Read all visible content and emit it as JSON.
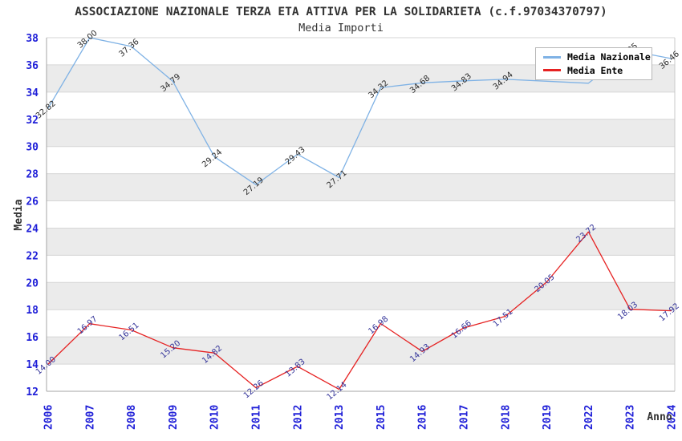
{
  "chart_data": {
    "type": "line",
    "title": "ASSOCIAZIONE NAZIONALE TERZA ETA ATTIVA PER LA SOLIDARIETA (c.f.97034370797)",
    "subtitle": "Media Importi",
    "xlabel": "Anno",
    "ylabel": "Media",
    "categories": [
      "2006",
      "2007",
      "2008",
      "2009",
      "2010",
      "2011",
      "2012",
      "2013",
      "2015",
      "2016",
      "2017",
      "2018",
      "2019",
      "2022",
      "2023",
      "2024"
    ],
    "series": [
      {
        "name": "Media Nazionale",
        "color": "#7fb2e5",
        "label_color": "#2b2b2b",
        "values": [
          32.82,
          38.0,
          37.36,
          34.79,
          29.24,
          27.19,
          29.43,
          27.71,
          34.32,
          34.68,
          34.83,
          34.94,
          34.8,
          34.65,
          37.05,
          36.46
        ],
        "point_labels": [
          "32.82",
          "38.00",
          "37.36",
          "34.79",
          "29.24",
          "27.19",
          "29.43",
          "27.71",
          "34.32",
          "34.68",
          "34.83",
          "34.94",
          "",
          "",
          "37.05",
          "36.46"
        ]
      },
      {
        "name": "Media Ente",
        "color": "#e62222",
        "label_color": "#333399",
        "values": [
          14.0,
          16.97,
          16.51,
          15.2,
          14.82,
          12.26,
          13.83,
          12.14,
          16.98,
          14.93,
          16.66,
          17.51,
          20.05,
          23.72,
          18.03,
          17.92
        ],
        "point_labels": [
          "14.00",
          "16.97",
          "16.51",
          "15.20",
          "14.82",
          "12.26",
          "13.83",
          "12.14",
          "16.98",
          "14.93",
          "16.66",
          "17.51",
          "20.05",
          "23.72",
          "18.03",
          "17.92"
        ]
      }
    ],
    "ylim": [
      12,
      38
    ],
    "y_ticks": [
      12,
      14,
      16,
      18,
      20,
      22,
      24,
      26,
      28,
      30,
      32,
      34,
      36,
      38
    ],
    "grid": true,
    "bands": true,
    "legend_position": "top-right",
    "tick_color": "#2020d8",
    "band_color": "#ebebeb",
    "grid_color": "#d6d6d6",
    "axis_color": "#a6a6a6",
    "right_border_color": "#c9c9c9",
    "axis_title_color": "#333333"
  }
}
